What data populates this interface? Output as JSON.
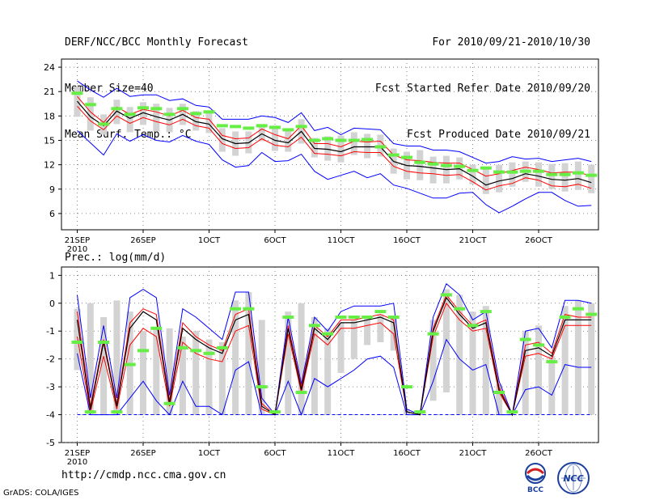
{
  "header": {
    "line1_left": "DERF/NCC/BCC Monthly Forecast",
    "line2_left": "Member Size=40",
    "line3_left": "Mean Surf. Temp.: °C",
    "line1_right": "For 2010/09/21-2010/10/30",
    "line2_right": "Fcst Started Refer Date 2010/09/20",
    "line3_right": "Fcst Produced Date 2010/09/21"
  },
  "footer": {
    "url": "http://cmdp.ncc.cma.gov.cn",
    "credit": "GrADS: COLA/IGES",
    "logo1_label": "BCC",
    "logo2_label": "NCC"
  },
  "colors": {
    "envelope": "#0000ff",
    "spread": "#ff0000",
    "mean": "#000000",
    "box": "#d3d3d3",
    "marker": "#66ee44",
    "baseline": "#0000ff",
    "grid": "#666666"
  },
  "chart_data": [
    {
      "type": "line",
      "title": "Mean Surf. Temp.: °C",
      "x_tick_labels": [
        "21SEP",
        "26SEP",
        "1OCT",
        "6OCT",
        "11OCT",
        "16OCT",
        "21OCT",
        "26OCT"
      ],
      "x_tick_days": [
        1,
        6,
        11,
        16,
        21,
        26,
        31,
        36
      ],
      "x_year_label": "2010",
      "ylim": [
        4,
        25
      ],
      "y_ticks": [
        6,
        9,
        12,
        15,
        18,
        21,
        24
      ],
      "x": [
        1,
        2,
        3,
        4,
        5,
        6,
        7,
        8,
        9,
        10,
        11,
        12,
        13,
        14,
        15,
        16,
        17,
        18,
        19,
        20,
        21,
        22,
        23,
        24,
        25,
        26,
        27,
        28,
        29,
        30,
        31,
        32,
        33,
        34,
        35,
        36,
        37,
        38,
        39,
        40
      ],
      "series": [
        {
          "name": "max",
          "values": [
            22.3,
            21.2,
            20.3,
            21.4,
            20.4,
            20.6,
            20.6,
            19.9,
            20.1,
            19.3,
            19.1,
            17.6,
            17.6,
            17.6,
            18.0,
            17.8,
            17.2,
            18.4,
            16.2,
            16.6,
            15.7,
            16.5,
            16.4,
            16.3,
            14.6,
            14.3,
            14.3,
            13.8,
            13.8,
            13.6,
            12.9,
            12.2,
            12.4,
            13.0,
            12.7,
            12.8,
            12.4,
            12.6,
            12.8,
            12.4
          ]
        },
        {
          "name": "upper",
          "values": [
            20.4,
            18.5,
            17.2,
            19.1,
            18.2,
            18.8,
            18.5,
            18.0,
            18.7,
            17.8,
            17.6,
            15.6,
            15.2,
            15.3,
            16.4,
            15.7,
            15.2,
            16.8,
            14.6,
            14.6,
            14.2,
            14.9,
            14.8,
            14.9,
            13.2,
            12.6,
            12.5,
            12.3,
            12.2,
            12.2,
            11.4,
            10.6,
            10.9,
            11.3,
            11.7,
            11.4,
            11.0,
            11.1,
            11.1,
            10.6
          ]
        },
        {
          "name": "mean",
          "values": [
            19.8,
            17.9,
            16.8,
            18.6,
            17.7,
            18.4,
            17.9,
            17.5,
            18.2,
            17.3,
            17.0,
            15.2,
            14.6,
            14.7,
            15.8,
            15.0,
            14.7,
            16.1,
            14.0,
            13.9,
            13.6,
            14.2,
            14.2,
            14.2,
            12.4,
            11.9,
            11.8,
            11.6,
            11.4,
            11.5,
            10.6,
            9.5,
            10.0,
            10.3,
            10.9,
            10.6,
            10.2,
            10.1,
            10.3,
            9.8
          ]
        },
        {
          "name": "lower",
          "values": [
            19.2,
            17.4,
            16.3,
            18.0,
            17.1,
            17.8,
            17.3,
            16.9,
            17.6,
            16.8,
            16.5,
            14.6,
            14.0,
            14.1,
            15.2,
            14.4,
            14.2,
            15.4,
            13.4,
            13.3,
            13.1,
            13.6,
            13.5,
            13.5,
            11.8,
            11.2,
            11.0,
            10.9,
            10.7,
            10.8,
            9.9,
            8.9,
            9.4,
            9.7,
            10.4,
            10.1,
            9.4,
            9.3,
            9.6,
            9.1
          ]
        },
        {
          "name": "min",
          "values": [
            16.2,
            14.7,
            13.2,
            15.8,
            14.9,
            15.7,
            15.0,
            14.8,
            15.6,
            14.9,
            14.5,
            12.6,
            11.7,
            11.9,
            13.5,
            12.4,
            12.5,
            13.3,
            11.2,
            10.2,
            10.7,
            11.2,
            10.4,
            10.9,
            9.5,
            9.1,
            8.5,
            7.9,
            7.9,
            8.5,
            8.6,
            7.1,
            6.1,
            6.9,
            7.8,
            8.6,
            8.6,
            7.6,
            6.9,
            7.0
          ]
        },
        {
          "name": "box_high",
          "values": [
            21.6,
            20.3,
            18.2,
            20.0,
            19.1,
            19.7,
            19.5,
            19.0,
            19.5,
            18.6,
            18.5,
            16.5,
            16.1,
            16.1,
            17.0,
            16.8,
            16.4,
            17.6,
            15.3,
            15.5,
            15.6,
            16.0,
            15.8,
            15.7,
            14.0,
            13.6,
            13.8,
            13.0,
            13.1,
            12.9,
            12.0,
            11.7,
            12.0,
            12.3,
            12.4,
            12.3,
            12.1,
            12.2,
            12.4,
            12.0
          ]
        },
        {
          "name": "box_low",
          "values": [
            17.9,
            16.2,
            15.7,
            17.0,
            16.0,
            16.9,
            16.1,
            16.0,
            16.9,
            16.2,
            15.9,
            13.6,
            13.1,
            13.4,
            14.9,
            13.7,
            13.6,
            14.6,
            12.9,
            12.5,
            12.3,
            13.2,
            12.8,
            13.0,
            10.9,
            10.2,
            10.1,
            9.7,
            9.7,
            10.2,
            9.6,
            8.4,
            8.6,
            9.3,
            9.9,
            9.3,
            9.0,
            8.7,
            8.9,
            8.5
          ]
        },
        {
          "name": "observed_marker",
          "values": [
            20.8,
            19.4,
            17.0,
            18.9,
            18.2,
            19.0,
            18.9,
            18.2,
            18.9,
            18.3,
            18.5,
            16.8,
            16.7,
            16.5,
            16.8,
            16.6,
            16.3,
            16.7,
            15.0,
            15.2,
            15.0,
            15.0,
            15.1,
            14.2,
            13.2,
            12.9,
            12.3,
            12.1,
            11.9,
            11.8,
            11.3,
            11.6,
            11.1,
            11.1,
            11.2,
            11.2,
            10.8,
            10.8,
            11.0,
            10.7
          ]
        }
      ]
    },
    {
      "type": "line",
      "title": "Prec.: log(mm/d)",
      "x_tick_labels": [
        "21SEP",
        "26SEP",
        "1OCT",
        "6OCT",
        "11OCT",
        "16OCT",
        "21OCT",
        "26OCT"
      ],
      "x_tick_days": [
        1,
        6,
        11,
        16,
        21,
        26,
        31,
        36
      ],
      "x_year_label": "2010",
      "ylim": [
        -5,
        1.3
      ],
      "y_ticks": [
        -5,
        -4,
        -3,
        -2,
        -1,
        0,
        1
      ],
      "baseline": -4,
      "x": [
        1,
        2,
        3,
        4,
        5,
        6,
        7,
        8,
        9,
        10,
        11,
        12,
        13,
        14,
        15,
        16,
        17,
        18,
        19,
        20,
        21,
        22,
        23,
        24,
        25,
        26,
        27,
        28,
        29,
        30,
        31,
        32,
        33,
        34,
        35,
        36,
        37,
        38,
        39,
        40
      ],
      "series": [
        {
          "name": "max",
          "values": [
            0.3,
            -3.4,
            -0.8,
            -3.4,
            0.2,
            0.5,
            0.2,
            -3.3,
            -0.2,
            -0.5,
            -0.9,
            -1.3,
            0.4,
            0.4,
            -3.4,
            -4.0,
            -0.5,
            -2.9,
            -0.5,
            -1.0,
            -0.3,
            -0.1,
            -0.1,
            -0.1,
            0.0,
            -3.8,
            -4.0,
            -0.5,
            0.7,
            0.3,
            -0.6,
            -0.3,
            -2.8,
            -4.0,
            -1.0,
            -0.9,
            -1.6,
            0.1,
            0.1,
            0.0
          ]
        },
        {
          "name": "upper",
          "values": [
            -0.3,
            -3.7,
            -1.3,
            -3.6,
            -0.7,
            -0.2,
            -0.4,
            -3.5,
            -0.7,
            -1.2,
            -1.5,
            -1.7,
            -0.4,
            -0.2,
            -3.6,
            -4.0,
            -0.8,
            -3.0,
            -0.8,
            -1.2,
            -0.6,
            -0.6,
            -0.5,
            -0.4,
            -0.6,
            -3.9,
            -4.0,
            -0.9,
            0.3,
            -0.3,
            -0.8,
            -0.6,
            -3.0,
            -4.0,
            -1.5,
            -1.4,
            -1.8,
            -0.4,
            -0.5,
            -0.5
          ]
        },
        {
          "name": "mean",
          "values": [
            -0.6,
            -3.8,
            -1.4,
            -3.7,
            -0.9,
            -0.3,
            -0.6,
            -3.6,
            -0.9,
            -1.3,
            -1.6,
            -1.8,
            -0.6,
            -0.4,
            -3.7,
            -4.0,
            -0.9,
            -3.1,
            -0.9,
            -1.3,
            -0.7,
            -0.7,
            -0.6,
            -0.5,
            -0.7,
            -3.9,
            -4.0,
            -1.0,
            0.2,
            -0.4,
            -0.9,
            -0.7,
            -3.1,
            -4.0,
            -1.7,
            -1.6,
            -1.9,
            -0.6,
            -0.6,
            -0.6
          ]
        },
        {
          "name": "lower",
          "values": [
            -1.2,
            -3.9,
            -1.9,
            -3.8,
            -1.5,
            -0.9,
            -1.2,
            -3.7,
            -1.4,
            -1.8,
            -2.0,
            -2.1,
            -1.0,
            -0.8,
            -3.8,
            -4.0,
            -1.1,
            -3.2,
            -1.1,
            -1.5,
            -0.9,
            -0.9,
            -0.8,
            -0.7,
            -1.1,
            -3.9,
            -4.0,
            -1.2,
            0.0,
            -0.6,
            -1.0,
            -0.9,
            -3.2,
            -4.0,
            -1.9,
            -1.8,
            -2.0,
            -0.8,
            -0.8,
            -0.8
          ]
        },
        {
          "name": "min",
          "values": [
            -1.8,
            -4.0,
            -4.0,
            -4.0,
            -3.4,
            -2.8,
            -3.5,
            -4.0,
            -2.8,
            -3.7,
            -3.7,
            -4.0,
            -2.4,
            -2.1,
            -4.0,
            -4.0,
            -2.8,
            -4.0,
            -2.7,
            -3.0,
            -2.7,
            -2.4,
            -2.0,
            -1.9,
            -2.3,
            -4.0,
            -4.0,
            -2.8,
            -1.3,
            -2.0,
            -2.4,
            -2.2,
            -4.0,
            -4.0,
            -3.1,
            -3.0,
            -3.3,
            -2.2,
            -2.3,
            -2.3
          ]
        },
        {
          "name": "box_high",
          "values": [
            -0.2,
            0.0,
            -0.5,
            0.1,
            -0.3,
            -1.0,
            -0.9,
            -0.9,
            -1.2,
            -1.0,
            -1.3,
            -1.4,
            0.1,
            0.4,
            -0.6,
            -3.9,
            -0.3,
            0.0,
            -0.5,
            -0.9,
            -0.7,
            -0.6,
            -0.5,
            -0.4,
            -0.5,
            -3.8,
            -3.9,
            -0.6,
            0.5,
            0.3,
            -0.3,
            -0.1,
            -2.9,
            -3.9,
            -1.0,
            -0.8,
            -1.9,
            -0.1,
            0.1,
            0.0
          ]
        },
        {
          "name": "box_low",
          "values": [
            -2.4,
            -4.0,
            -4.0,
            -4.0,
            -4.0,
            -4.0,
            -4.0,
            -4.0,
            -4.0,
            -4.0,
            -4.0,
            -4.0,
            -4.0,
            -4.0,
            -4.0,
            -4.0,
            -4.0,
            -4.0,
            -4.0,
            -4.0,
            -2.5,
            -2.0,
            -1.5,
            -1.4,
            -1.7,
            -4.0,
            -4.0,
            -3.5,
            -3.2,
            -4.0,
            -4.0,
            -4.0,
            -4.0,
            -4.0,
            -4.0,
            -4.0,
            -4.0,
            -4.0,
            -4.0,
            -4.0
          ]
        },
        {
          "name": "observed_marker",
          "values": [
            -1.4,
            -3.9,
            -1.4,
            -3.9,
            -2.2,
            -1.7,
            -0.9,
            -3.6,
            -1.6,
            -1.7,
            -1.8,
            -1.6,
            -0.2,
            -0.2,
            -3.0,
            -3.9,
            -0.5,
            -3.2,
            -0.8,
            -1.1,
            -0.5,
            -0.5,
            -0.5,
            -0.3,
            -0.5,
            -3.0,
            -3.9,
            -1.1,
            0.3,
            -0.2,
            -0.8,
            -0.3,
            -3.2,
            -3.9,
            -1.3,
            -1.5,
            -2.1,
            -0.5,
            -0.2,
            -0.4
          ]
        }
      ]
    }
  ]
}
